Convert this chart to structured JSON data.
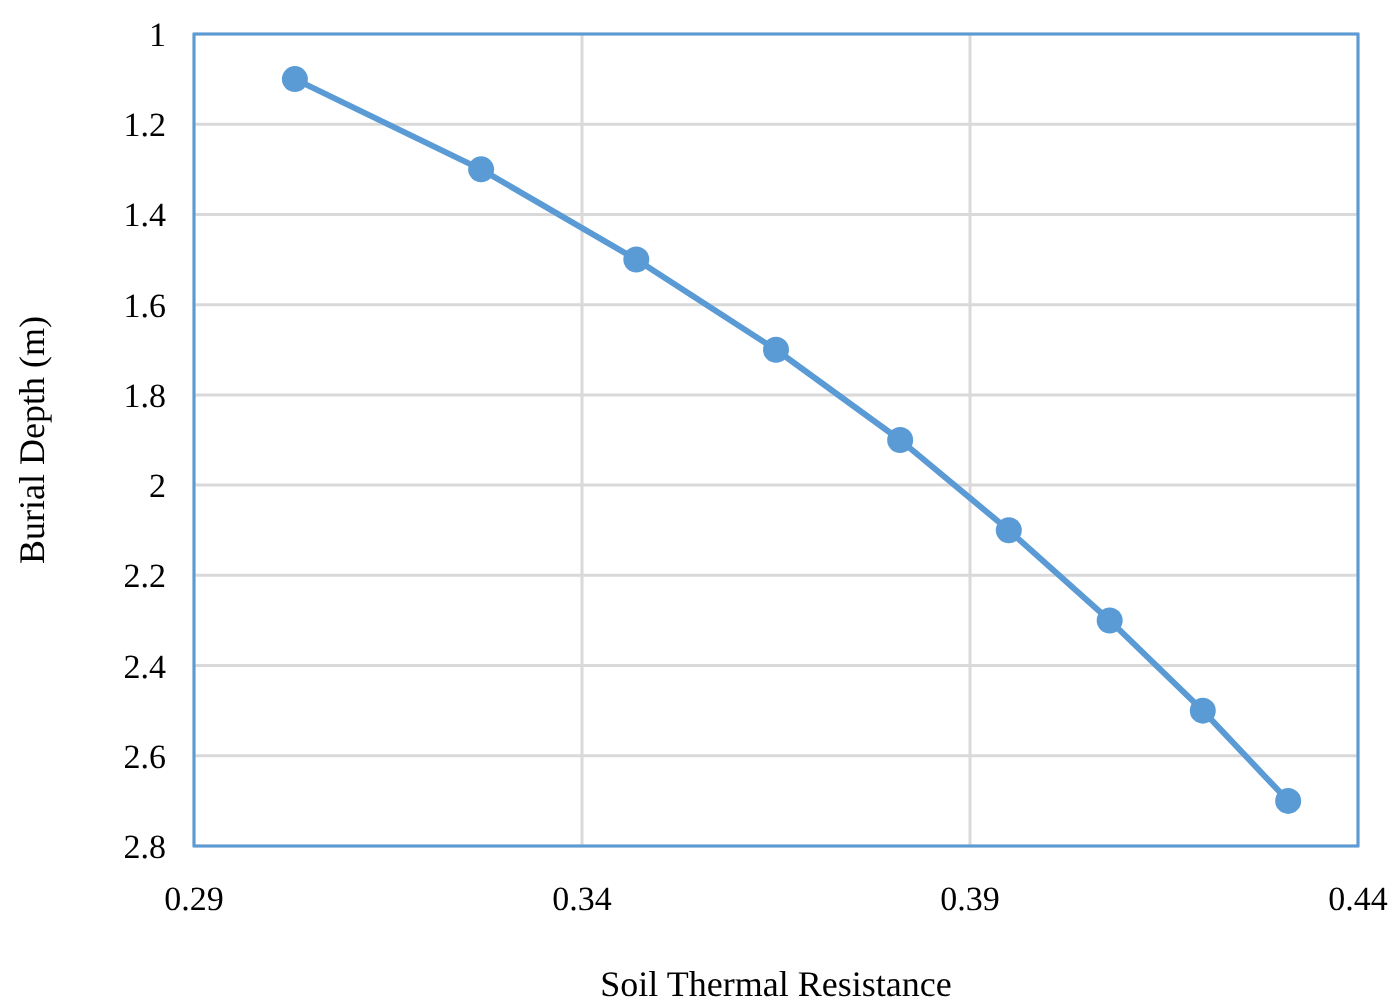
{
  "chart_data": {
    "type": "line",
    "xlabel": "Soil Thermal Resistance",
    "ylabel": "Burial Depth (m)",
    "x": [
      0.303,
      0.327,
      0.347,
      0.365,
      0.381,
      0.395,
      0.408,
      0.42,
      0.431
    ],
    "series": [
      {
        "color": "#5b9bd5",
        "values": [
          1.1,
          1.3,
          1.5,
          1.7,
          1.9,
          2.1,
          2.3,
          2.5,
          2.7
        ]
      }
    ],
    "xlim": [
      0.29,
      0.44
    ],
    "xticks": [
      0.29,
      0.34,
      0.39,
      0.44
    ],
    "ylim": [
      2.8,
      1
    ],
    "yticks": [
      1,
      1.2,
      1.4,
      1.6,
      1.8,
      2,
      2.2,
      2.4,
      2.6,
      2.8
    ],
    "grid": true,
    "marker": "circle",
    "line_style": "solid"
  }
}
